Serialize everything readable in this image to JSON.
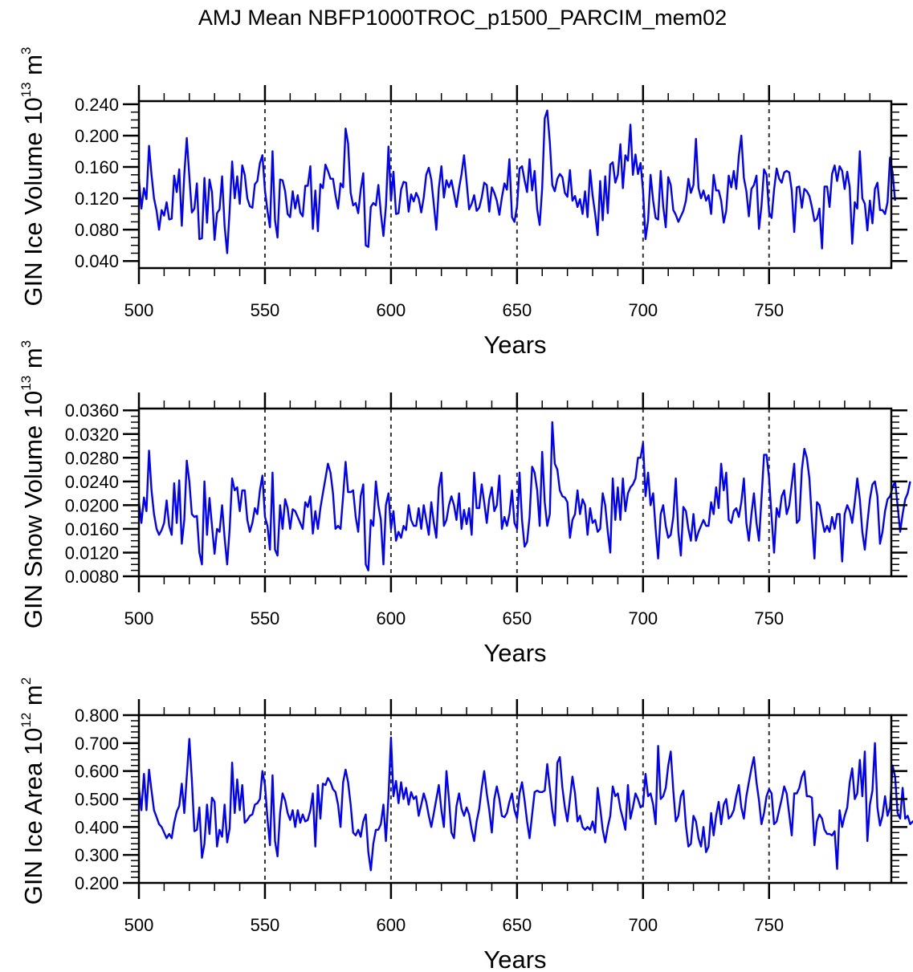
{
  "chart_data": {
    "title": "AMJ Mean NBFP1000TROC_p1500_PARCIM_mem02",
    "line_color": "#0000ff",
    "panels": [
      {
        "type": "line",
        "ylabel_main": "GIN Ice Volume 10",
        "ylabel_exp": "13",
        "ylabel_unit": " m",
        "ylabel_unit_exp": "3",
        "xlabel": "Years",
        "xlim": [
          500,
          798.5
        ],
        "ylim": [
          0.031,
          0.244
        ],
        "yticks": [
          0.04,
          0.08,
          0.12,
          0.16,
          0.2,
          0.24
        ],
        "ytick_labels": [
          "0.040",
          "0.080",
          "0.120",
          "0.160",
          "0.200",
          "0.240"
        ],
        "yminor_step": 0.01,
        "xticks": [
          500,
          550,
          600,
          650,
          700,
          750
        ],
        "xtick_labels": [
          "500",
          "550",
          "600",
          "650",
          "700",
          "750"
        ],
        "xminor_step": 10,
        "dashed_x": [
          550,
          600,
          650,
          700,
          750
        ],
        "x_start": 500,
        "values": [
          0.145,
          0.107,
          0.133,
          0.119,
          0.187,
          0.15,
          0.12,
          0.104,
          0.08,
          0.105,
          0.098,
          0.115,
          0.093,
          0.094,
          0.149,
          0.128,
          0.157,
          0.085,
          0.15,
          0.197,
          0.148,
          0.102,
          0.107,
          0.139,
          0.068,
          0.069,
          0.146,
          0.089,
          0.144,
          0.128,
          0.067,
          0.101,
          0.106,
          0.148,
          0.085,
          0.05,
          0.105,
          0.167,
          0.12,
          0.148,
          0.113,
          0.162,
          0.15,
          0.12,
          0.11,
          0.108,
          0.138,
          0.142,
          0.165,
          0.175,
          0.13,
          0.104,
          0.083,
          0.18,
          0.092,
          0.07,
          0.144,
          0.143,
          0.129,
          0.1,
          0.096,
          0.129,
          0.107,
          0.124,
          0.102,
          0.097,
          0.136,
          0.136,
          0.161,
          0.081,
          0.13,
          0.078,
          0.138,
          0.133,
          0.163,
          0.155,
          0.145,
          0.145,
          0.124,
          0.107,
          0.139,
          0.134,
          0.209,
          0.19,
          0.127,
          0.111,
          0.114,
          0.101,
          0.131,
          0.152,
          0.06,
          0.058,
          0.109,
          0.114,
          0.111,
          0.137,
          0.101,
          0.072,
          0.11,
          0.186,
          0.117,
          0.154,
          0.1,
          0.101,
          0.131,
          0.141,
          0.14,
          0.103,
          0.125,
          0.116,
          0.127,
          0.12,
          0.102,
          0.121,
          0.15,
          0.159,
          0.144,
          0.112,
          0.08,
          0.133,
          0.161,
          0.121,
          0.143,
          0.134,
          0.143,
          0.126,
          0.109,
          0.133,
          0.151,
          0.175,
          0.141,
          0.106,
          0.113,
          0.124,
          0.104,
          0.108,
          0.121,
          0.14,
          0.137,
          0.103,
          0.134,
          0.127,
          0.117,
          0.099,
          0.121,
          0.139,
          0.131,
          0.17,
          0.096,
          0.09,
          0.11,
          0.158,
          0.161,
          0.143,
          0.128,
          0.17,
          0.13,
          0.155,
          0.106,
          0.086,
          0.133,
          0.222,
          0.232,
          0.192,
          0.137,
          0.129,
          0.145,
          0.151,
          0.147,
          0.127,
          0.122,
          0.156,
          0.117,
          0.123,
          0.109,
          0.119,
          0.1,
          0.129,
          0.096,
          0.156,
          0.124,
          0.1,
          0.073,
          0.142,
          0.092,
          0.148,
          0.101,
          0.163,
          0.166,
          0.14,
          0.15,
          0.189,
          0.133,
          0.175,
          0.168,
          0.214,
          0.15,
          0.176,
          0.151,
          0.165,
          0.13,
          0.068,
          0.092,
          0.15,
          0.117,
          0.095,
          0.093,
          0.155,
          0.11,
          0.083,
          0.147,
          0.137,
          0.105,
          0.099,
          0.09,
          0.097,
          0.104,
          0.117,
          0.145,
          0.127,
          0.137,
          0.196,
          0.133,
          0.12,
          0.13,
          0.117,
          0.124,
          0.1,
          0.15,
          0.13,
          0.13,
          0.117,
          0.089,
          0.104,
          0.149,
          0.134,
          0.155,
          0.132,
          0.174,
          0.2,
          0.146,
          0.129,
          0.097,
          0.132,
          0.137,
          0.149,
          0.081,
          0.11,
          0.157,
          0.15,
          0.102,
          0.095,
          0.131,
          0.158,
          0.145,
          0.14,
          0.153,
          0.155,
          0.153,
          0.13,
          0.077,
          0.134,
          0.135,
          0.108,
          0.132,
          0.129,
          0.123,
          0.109,
          0.091,
          0.094,
          0.107,
          0.056,
          0.135,
          0.135,
          0.109,
          0.151,
          0.162,
          0.142,
          0.161,
          0.155,
          0.132,
          0.154,
          0.134,
          0.062,
          0.115,
          0.107,
          0.18,
          0.12,
          0.113,
          0.079,
          0.117,
          0.088,
          0.132,
          0.14,
          0.105,
          0.105,
          0.1,
          0.115,
          0.172,
          0.153,
          0.117
        ]
      },
      {
        "type": "line",
        "ylabel_main": "GIN Snow Volume 10",
        "ylabel_exp": "13",
        "ylabel_unit": " m",
        "ylabel_unit_exp": "3",
        "xlabel": "Years",
        "xlim": [
          500,
          798.5
        ],
        "ylim": [
          0.008,
          0.0363
        ],
        "yticks": [
          0.008,
          0.012,
          0.016,
          0.02,
          0.024,
          0.028,
          0.032,
          0.036
        ],
        "ytick_labels": [
          "0.0080",
          "0.0120",
          "0.0160",
          "0.0200",
          "0.0240",
          "0.0280",
          "0.0320",
          "0.0360"
        ],
        "yminor_step": 0.001,
        "xticks": [
          500,
          550,
          600,
          650,
          700,
          750
        ],
        "xtick_labels": [
          "500",
          "550",
          "600",
          "650",
          "700",
          "750"
        ],
        "xminor_step": 10,
        "dashed_x": [
          550,
          600,
          650,
          700,
          750
        ],
        "x_start": 500,
        "values": [
          0.0205,
          0.017,
          0.0213,
          0.019,
          0.0292,
          0.0225,
          0.0185,
          0.016,
          0.015,
          0.0158,
          0.017,
          0.0208,
          0.0165,
          0.015,
          0.0237,
          0.017,
          0.0242,
          0.0135,
          0.0175,
          0.0275,
          0.024,
          0.0185,
          0.018,
          0.0182,
          0.012,
          0.01,
          0.024,
          0.015,
          0.0212,
          0.0165,
          0.0118,
          0.016,
          0.0155,
          0.02,
          0.0145,
          0.01,
          0.016,
          0.0245,
          0.0225,
          0.023,
          0.019,
          0.0225,
          0.0225,
          0.0175,
          0.0155,
          0.017,
          0.0195,
          0.0185,
          0.0225,
          0.025,
          0.018,
          0.0165,
          0.0125,
          0.0255,
          0.0125,
          0.0115,
          0.02,
          0.016,
          0.021,
          0.0195,
          0.016,
          0.0193,
          0.019,
          0.018,
          0.017,
          0.016,
          0.0205,
          0.0197,
          0.0215,
          0.0152,
          0.019,
          0.016,
          0.0195,
          0.022,
          0.0245,
          0.027,
          0.0255,
          0.022,
          0.016,
          0.0165,
          0.016,
          0.0215,
          0.0273,
          0.0222,
          0.0222,
          0.0225,
          0.018,
          0.0155,
          0.0215,
          0.0235,
          0.01,
          0.009,
          0.0175,
          0.0165,
          0.024,
          0.02,
          0.0175,
          0.01,
          0.02,
          0.022,
          0.016,
          0.019,
          0.014,
          0.0155,
          0.0145,
          0.0165,
          0.0158,
          0.02,
          0.0175,
          0.0165,
          0.0165,
          0.0195,
          0.016,
          0.02,
          0.0175,
          0.015,
          0.0205,
          0.017,
          0.0145,
          0.023,
          0.0255,
          0.0165,
          0.0175,
          0.02,
          0.0215,
          0.02,
          0.0175,
          0.022,
          0.016,
          0.0192,
          0.0168,
          0.0195,
          0.015,
          0.0255,
          0.0195,
          0.0195,
          0.0235,
          0.0205,
          0.017,
          0.021,
          0.023,
          0.019,
          0.02,
          0.025,
          0.016,
          0.018,
          0.0165,
          0.0185,
          0.0225,
          0.017,
          0.016,
          0.0255,
          0.0175,
          0.013,
          0.0138,
          0.018,
          0.0265,
          0.0255,
          0.0225,
          0.0165,
          0.029,
          0.0205,
          0.0165,
          0.0185,
          0.034,
          0.027,
          0.026,
          0.0225,
          0.0215,
          0.0213,
          0.0205,
          0.0145,
          0.0175,
          0.0185,
          0.0225,
          0.0185,
          0.021,
          0.02,
          0.015,
          0.0195,
          0.017,
          0.0175,
          0.0155,
          0.016,
          0.022,
          0.02,
          0.0155,
          0.012,
          0.0245,
          0.0175,
          0.023,
          0.0175,
          0.0245,
          0.019,
          0.022,
          0.023,
          0.0235,
          0.0245,
          0.028,
          0.028,
          0.0305,
          0.0215,
          0.0255,
          0.02,
          0.022,
          0.016,
          0.011,
          0.0185,
          0.02,
          0.0165,
          0.0145,
          0.015,
          0.018,
          0.0245,
          0.0155,
          0.0115,
          0.0197,
          0.019,
          0.016,
          0.014,
          0.0185,
          0.014,
          0.0155,
          0.0165,
          0.0175,
          0.0165,
          0.0165,
          0.0205,
          0.0185,
          0.023,
          0.0195,
          0.027,
          0.0225,
          0.0255,
          0.0175,
          0.017,
          0.019,
          0.0195,
          0.018,
          0.0205,
          0.0245,
          0.017,
          0.014,
          0.0185,
          0.022,
          0.017,
          0.014,
          0.021,
          0.0285,
          0.0285,
          0.0245,
          0.018,
          0.012,
          0.0195,
          0.018,
          0.0215,
          0.0225,
          0.0185,
          0.02,
          0.0235,
          0.027,
          0.017,
          0.0175,
          0.026,
          0.0295,
          0.028,
          0.0245,
          0.0175,
          0.011,
          0.0205,
          0.02,
          0.0175,
          0.0155,
          0.0165,
          0.0155,
          0.018,
          0.016,
          0.0185,
          0.0185,
          0.0105,
          0.0185,
          0.02,
          0.019,
          0.017,
          0.0205,
          0.0245,
          0.021,
          0.0155,
          0.0125,
          0.017,
          0.021,
          0.0235,
          0.024,
          0.0215,
          0.0135,
          0.0155,
          0.019,
          0.021,
          0.0215,
          0.023,
          0.024,
          0.02,
          0.0155,
          0.0185,
          0.021,
          0.022,
          0.024
        ]
      },
      {
        "type": "line",
        "ylabel_main": "GIN Ice Area 10",
        "ylabel_exp": "12",
        "ylabel_unit": " m",
        "ylabel_unit_exp": "2",
        "xlabel": "Years",
        "xlim": [
          500,
          798.5
        ],
        "ylim": [
          0.2,
          0.8
        ],
        "yticks": [
          0.2,
          0.3,
          0.4,
          0.5,
          0.6,
          0.7,
          0.8
        ],
        "ytick_labels": [
          "0.200",
          "0.300",
          "0.400",
          "0.500",
          "0.600",
          "0.700",
          "0.800"
        ],
        "yminor_step": 0.02,
        "xticks": [
          500,
          550,
          600,
          650,
          700,
          750
        ],
        "xtick_labels": [
          "500",
          "550",
          "600",
          "650",
          "700",
          "750"
        ],
        "xminor_step": 10,
        "dashed_x": [
          550,
          600,
          650,
          700,
          750
        ],
        "x_start": 500,
        "values": [
          0.54,
          0.46,
          0.59,
          0.46,
          0.605,
          0.53,
          0.46,
          0.435,
          0.41,
          0.4,
          0.38,
          0.36,
          0.375,
          0.36,
          0.415,
          0.455,
          0.475,
          0.555,
          0.45,
          0.58,
          0.715,
          0.57,
          0.385,
          0.39,
          0.47,
          0.29,
          0.34,
          0.48,
          0.375,
          0.505,
          0.49,
          0.33,
          0.39,
          0.365,
          0.48,
          0.345,
          0.395,
          0.63,
          0.45,
          0.57,
          0.46,
          0.55,
          0.415,
          0.425,
          0.44,
          0.445,
          0.48,
          0.485,
          0.5,
          0.6,
          0.55,
          0.43,
          0.335,
          0.585,
          0.35,
          0.295,
          0.45,
          0.52,
          0.495,
          0.45,
          0.425,
          0.46,
          0.4,
          0.46,
          0.415,
          0.445,
          0.42,
          0.425,
          0.46,
          0.52,
          0.33,
          0.55,
          0.43,
          0.555,
          0.55,
          0.575,
          0.56,
          0.535,
          0.525,
          0.48,
          0.4,
          0.56,
          0.605,
          0.56,
          0.48,
          0.38,
          0.37,
          0.39,
          0.365,
          0.42,
          0.445,
          0.31,
          0.245,
          0.34,
          0.39,
          0.39,
          0.41,
          0.48,
          0.35,
          0.51,
          0.72,
          0.51,
          0.565,
          0.485,
          0.56,
          0.5,
          0.54,
          0.48,
          0.525,
          0.5,
          0.51,
          0.44,
          0.48,
          0.52,
          0.49,
          0.44,
          0.4,
          0.45,
          0.5,
          0.55,
          0.46,
          0.4,
          0.6,
          0.5,
          0.38,
          0.36,
          0.475,
          0.52,
          0.465,
          0.44,
          0.47,
          0.445,
          0.39,
          0.35,
          0.42,
          0.465,
          0.54,
          0.6,
          0.52,
          0.46,
          0.38,
          0.5,
          0.545,
          0.5,
          0.44,
          0.435,
          0.45,
          0.49,
          0.52,
          0.46,
          0.43,
          0.52,
          0.56,
          0.495,
          0.42,
          0.36,
          0.445,
          0.525,
          0.53,
          0.525,
          0.525,
          0.53,
          0.625,
          0.54,
          0.46,
          0.405,
          0.63,
          0.65,
          0.54,
          0.47,
          0.42,
          0.5,
          0.58,
          0.52,
          0.42,
          0.44,
          0.4,
          0.39,
          0.4,
          0.39,
          0.42,
          0.38,
          0.54,
          0.47,
          0.39,
          0.345,
          0.4,
          0.44,
          0.545,
          0.51,
          0.52,
          0.465,
          0.43,
          0.39,
          0.55,
          0.43,
          0.47,
          0.52,
          0.5,
          0.47,
          0.48,
          0.59,
          0.51,
          0.52,
          0.48,
          0.41,
          0.69,
          0.5,
          0.51,
          0.54,
          0.62,
          0.67,
          0.53,
          0.42,
          0.44,
          0.51,
          0.53,
          0.405,
          0.33,
          0.34,
          0.44,
          0.42,
          0.36,
          0.33,
          0.4,
          0.31,
          0.33,
          0.45,
          0.37,
          0.44,
          0.49,
          0.41,
          0.48,
          0.5,
          0.43,
          0.44,
          0.46,
          0.51,
          0.55,
          0.47,
          0.43,
          0.51,
          0.56,
          0.61,
          0.65,
          0.56,
          0.495,
          0.41,
          0.45,
          0.51,
          0.535,
          0.52,
          0.41,
          0.42,
          0.46,
          0.5,
          0.545,
          0.52,
          0.445,
          0.37,
          0.52,
          0.52,
          0.54,
          0.58,
          0.6,
          0.51,
          0.51,
          0.505,
          0.335,
          0.42,
          0.445,
          0.43,
          0.39,
          0.375,
          0.375,
          0.37,
          0.385,
          0.25,
          0.46,
          0.4,
          0.44,
          0.47,
          0.56,
          0.61,
          0.5,
          0.52,
          0.64,
          0.51,
          0.67,
          0.35,
          0.48,
          0.53,
          0.7,
          0.47,
          0.405,
          0.44,
          0.51,
          0.44,
          0.47,
          0.62,
          0.58,
          0.45,
          0.43,
          0.54,
          0.43,
          0.44,
          0.41,
          0.42,
          0.41,
          0.5,
          0.5,
          0.38,
          0.48,
          0.62,
          0.55,
          0.35
        ]
      }
    ]
  }
}
